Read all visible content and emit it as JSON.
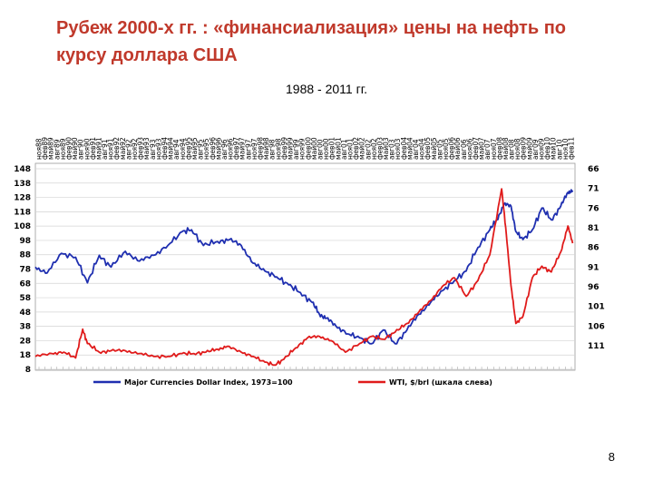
{
  "title": "Рубеж 2000-х гг. : «финансиализация» цены на нефть по курсу доллара США",
  "subtitle": "1988 - 2011 гг.",
  "page_number": "8",
  "chart_data": {
    "type": "line",
    "title": "",
    "xlabel": "",
    "ylabel": "",
    "x_tick_labels": [
      "ноя88",
      "фев89",
      "май89",
      "авг89",
      "ноя89",
      "фев90",
      "май90",
      "авг90",
      "ноя90",
      "фев91",
      "май91",
      "авг91",
      "ноя91",
      "фев92",
      "май92",
      "авг92",
      "ноя92",
      "фев93",
      "май93",
      "авг93",
      "ноя93",
      "фев94",
      "май94",
      "авг94",
      "ноя94",
      "фев95",
      "май95",
      "авг95",
      "ноя95",
      "фев96",
      "май96",
      "авг96",
      "ноя96",
      "фев97",
      "май97",
      "авг97",
      "ноя97",
      "фев98",
      "май98",
      "авг98",
      "ноя98",
      "фев99",
      "май99",
      "авг99",
      "ноя99",
      "фев00",
      "май00",
      "авг00",
      "ноя00",
      "фев01",
      "май01",
      "авг01",
      "ноя01",
      "фев02",
      "май02",
      "авг02",
      "ноя02",
      "фев03",
      "май03",
      "авг03",
      "ноя03",
      "фев04",
      "май04",
      "авг04",
      "ноя04",
      "фев05",
      "май05",
      "авг05",
      "ноя05",
      "фев06",
      "май06",
      "авг06",
      "ноя06",
      "фев07",
      "май07",
      "авг07",
      "ноя07",
      "фев08",
      "май08",
      "авг08",
      "ноя08",
      "фев09",
      "май09",
      "авг09",
      "ноя09",
      "фев10",
      "май10",
      "авг10",
      "ноя10",
      "фев11"
    ],
    "left_axis": {
      "ticks": [
        148,
        138,
        128,
        118,
        108,
        98,
        88,
        78,
        68,
        58,
        48,
        38,
        28,
        18,
        8
      ],
      "ylim": [
        8,
        148
      ]
    },
    "right_axis": {
      "ticks": [
        66,
        71,
        76,
        81,
        86,
        91,
        96,
        101,
        106,
        111
      ],
      "inverted": true,
      "ylim": [
        66,
        117
      ]
    },
    "grid": true,
    "legend_position": "bottom",
    "series": [
      {
        "name": "Major Currencies Dollar Index, 1973=100",
        "axis": "right",
        "color": "#1f2fb0",
        "x": [
          1988.8,
          1989.3,
          1989.9,
          1990.5,
          1991.0,
          1991.5,
          1992.0,
          1992.6,
          1993.2,
          1993.8,
          1994.4,
          1995.0,
          1995.4,
          1995.9,
          1996.5,
          1997.0,
          1997.5,
          1998.0,
          1998.5,
          1999.0,
          1999.5,
          2000.0,
          2000.5,
          2000.8,
          2001.1,
          2001.5,
          2002.0,
          2002.5,
          2003.0,
          2003.5,
          2004.0,
          2004.5,
          2005.0,
          2005.5,
          2006.0,
          2006.5,
          2007.0,
          2007.5,
          2008.0,
          2008.3,
          2008.6,
          2008.9,
          2009.1,
          2009.4,
          2009.8,
          2010.2,
          2010.6,
          2011.0,
          2011.3,
          2011.5
        ],
        "y": [
          91.0,
          92.5,
          87.5,
          88.5,
          95.0,
          88.0,
          91.0,
          87.0,
          89.5,
          88.0,
          85.5,
          82.0,
          81.5,
          85.5,
          84.5,
          84.0,
          85.5,
          90.0,
          92.0,
          93.5,
          95.5,
          97.5,
          100.0,
          103.0,
          104.0,
          106.0,
          108.0,
          109.0,
          110.5,
          107.0,
          110.5,
          107.0,
          103.0,
          100.0,
          97.0,
          94.5,
          92.0,
          86.0,
          81.5,
          79.0,
          75.0,
          75.5,
          82.0,
          84.0,
          81.5,
          76.0,
          79.0,
          75.5,
          72.0,
          71.5
        ]
      },
      {
        "name": "WTI, $/brl (шкала слева)",
        "axis": "left",
        "color": "#e01b1b",
        "x": [
          1988.8,
          1989.5,
          1990.0,
          1990.5,
          1990.8,
          1991.0,
          1991.5,
          1992.0,
          1992.6,
          1993.2,
          1993.8,
          1994.4,
          1995.0,
          1995.5,
          1996.0,
          1996.5,
          1996.9,
          1997.5,
          1998.0,
          1998.5,
          1998.9,
          1999.3,
          1999.8,
          2000.3,
          2000.8,
          2001.3,
          2001.9,
          2002.5,
          2003.0,
          2003.5,
          2004.0,
          2004.5,
          2005.0,
          2005.5,
          2006.0,
          2006.5,
          2007.0,
          2007.5,
          2008.0,
          2008.5,
          2008.7,
          2008.9,
          2009.1,
          2009.4,
          2009.8,
          2010.2,
          2010.6,
          2011.0,
          2011.3,
          2011.5
        ],
        "y": [
          17,
          19,
          20,
          16,
          36,
          26,
          20,
          21,
          21,
          19,
          17,
          17,
          19,
          19,
          20,
          22,
          24,
          20,
          17,
          13,
          11,
          15,
          23,
          30,
          31,
          28,
          20,
          26,
          31,
          29,
          34,
          40,
          48,
          56,
          66,
          72,
          59,
          70,
          88,
          134,
          102,
          66,
          40,
          45,
          72,
          80,
          76,
          90,
          108,
          96
        ]
      }
    ]
  }
}
